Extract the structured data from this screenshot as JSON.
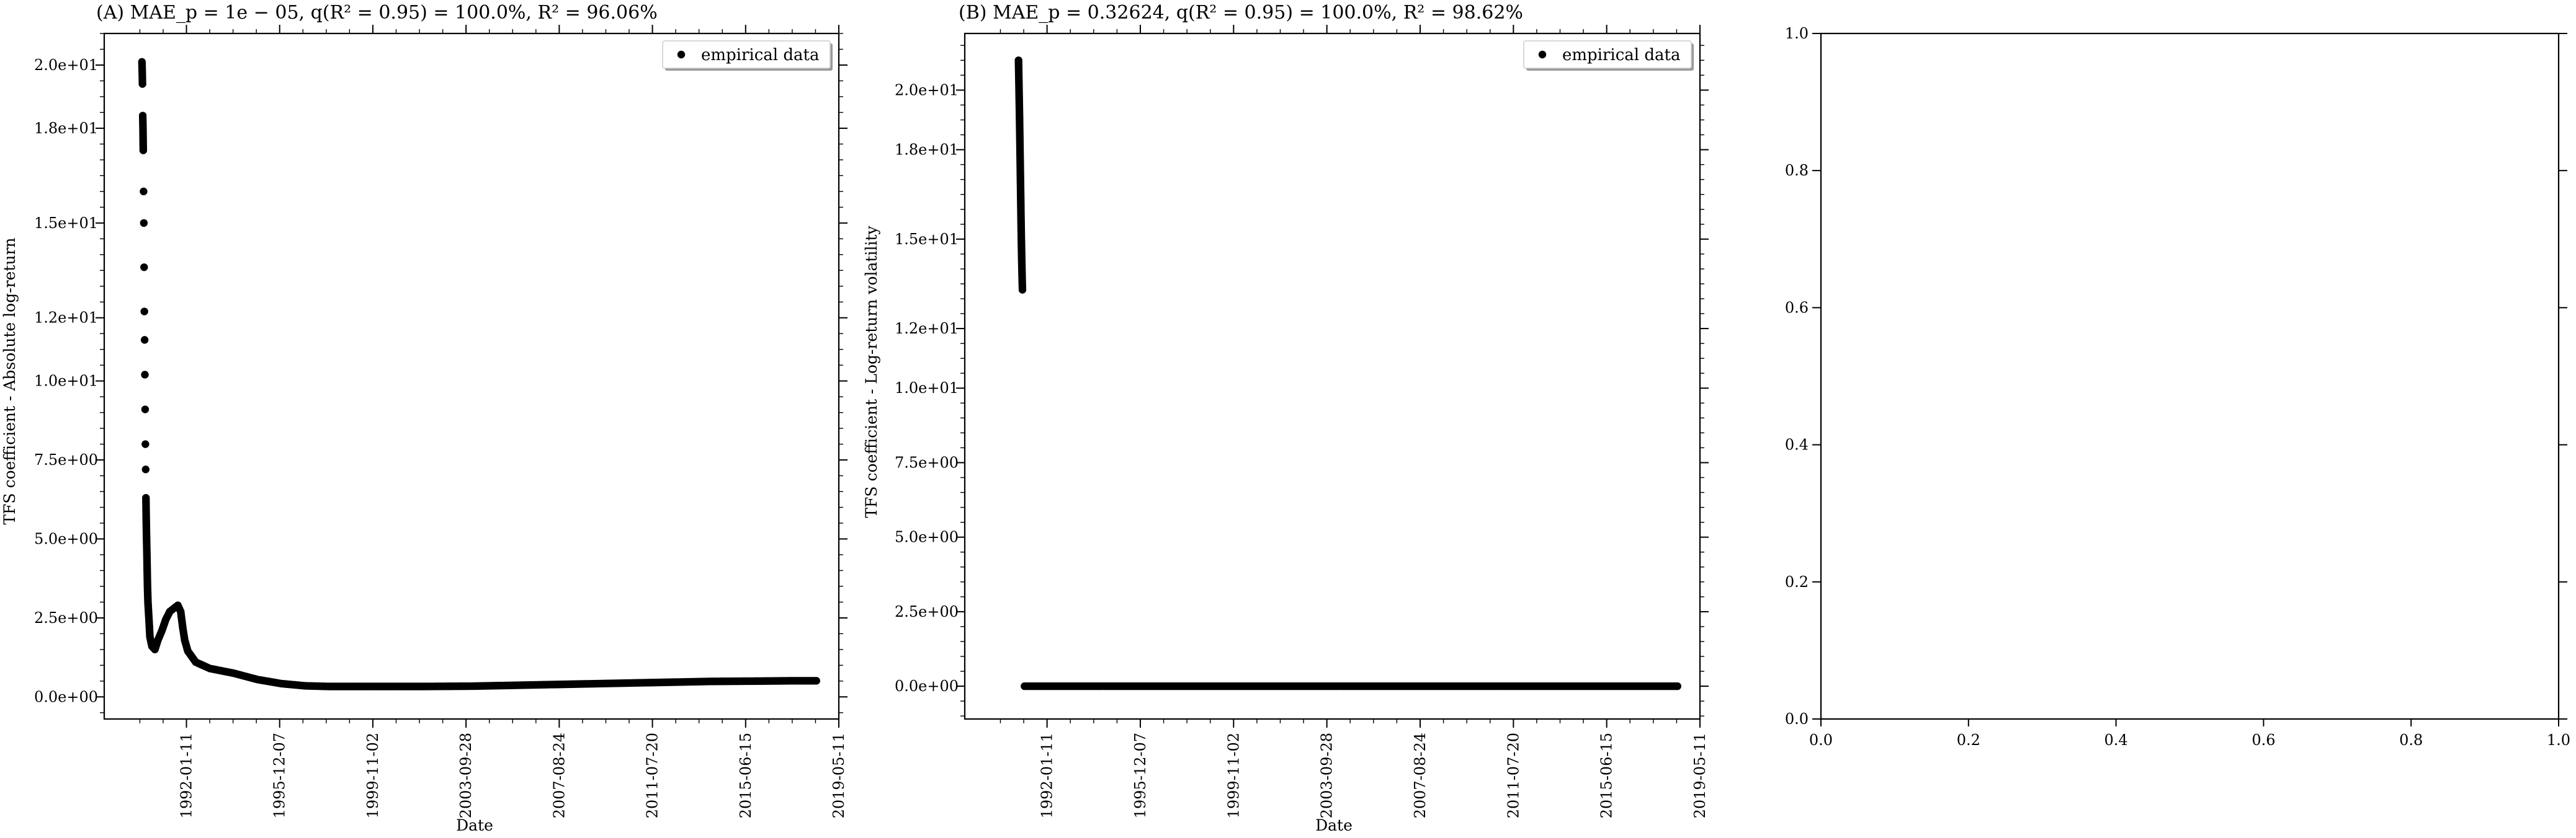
{
  "chart_data": [
    {
      "type": "scatter",
      "title": "(A) MAE_p = 1e − 05, q(R² = 0.95) = 100.0%, R² = 96.06%",
      "xlabel": "Date",
      "ylabel": "TFS coefficient - Absolute log-return",
      "x_ticks": [
        "1992-01-11",
        "1995-12-07",
        "1999-11-02",
        "2003-09-28",
        "2007-08-24",
        "2011-07-20",
        "2015-06-15",
        "2019-05-11"
      ],
      "y_ticks": [
        "0.0e+00",
        "2.5e+00",
        "5.0e+00",
        "7.5e+00",
        "1.0e+01",
        "1.2e+01",
        "1.5e+01",
        "1.8e+01",
        "2.0e+01"
      ],
      "xlim": [
        "1988-08-01",
        "2019-05-11"
      ],
      "ylim": [
        -0.7,
        21.0
      ],
      "legend": {
        "position": "top-right",
        "entries": [
          "empirical data"
        ]
      },
      "series": [
        {
          "name": "empirical data",
          "points": [
            [
              "1990-03-01",
              20.1
            ],
            [
              "1990-03-05",
              19.8
            ],
            [
              "1990-03-09",
              19.4
            ],
            [
              "1990-03-13",
              18.4
            ],
            [
              "1990-03-17",
              18.0
            ],
            [
              "1990-03-21",
              17.3
            ],
            [
              "1990-03-26",
              16.0
            ],
            [
              "1990-03-30",
              15.0
            ],
            [
              "1990-04-03",
              13.6
            ],
            [
              "1990-04-07",
              12.2
            ],
            [
              "1990-04-11",
              11.3
            ],
            [
              "1990-04-15",
              10.2
            ],
            [
              "1990-04-19",
              9.1
            ],
            [
              "1990-04-23",
              8.0
            ],
            [
              "1990-04-27",
              7.2
            ],
            [
              "1990-05-01",
              6.3
            ],
            [
              "1990-05-05",
              5.7
            ],
            [
              "1990-05-09",
              5.2
            ],
            [
              "1990-05-13",
              4.8
            ],
            [
              "1990-05-17",
              4.4
            ],
            [
              "1990-05-21",
              3.9
            ],
            [
              "1990-05-25",
              3.5
            ],
            [
              "1990-06-01",
              3.0
            ],
            [
              "1990-06-15",
              2.5
            ],
            [
              "1990-07-01",
              1.9
            ],
            [
              "1990-08-01",
              1.6
            ],
            [
              "1990-09-15",
              1.5
            ],
            [
              "1990-11-01",
              1.8
            ],
            [
              "1991-01-01",
              2.1
            ],
            [
              "1991-03-01",
              2.45
            ],
            [
              "1991-05-01",
              2.7
            ],
            [
              "1991-07-01",
              2.8
            ],
            [
              "1991-09-01",
              2.9
            ],
            [
              "1991-10-15",
              2.7
            ],
            [
              "1991-11-15",
              2.2
            ],
            [
              "1991-12-15",
              1.8
            ],
            [
              "1992-02-01",
              1.45
            ],
            [
              "1992-06-01",
              1.1
            ],
            [
              "1993-01-01",
              0.9
            ],
            [
              "1994-01-01",
              0.75
            ],
            [
              "1995-01-01",
              0.55
            ],
            [
              "1996-01-01",
              0.42
            ],
            [
              "1997-01-01",
              0.35
            ],
            [
              "1998-01-01",
              0.33
            ],
            [
              "2000-01-01",
              0.33
            ],
            [
              "2002-01-01",
              0.33
            ],
            [
              "2004-01-01",
              0.34
            ],
            [
              "2006-01-01",
              0.37
            ],
            [
              "2008-01-01",
              0.4
            ],
            [
              "2010-01-01",
              0.43
            ],
            [
              "2012-01-01",
              0.46
            ],
            [
              "2014-01-01",
              0.49
            ],
            [
              "2016-01-01",
              0.5
            ],
            [
              "2017-06-01",
              0.51
            ],
            [
              "2018-06-01",
              0.51
            ]
          ]
        }
      ]
    },
    {
      "type": "scatter",
      "title": "(B) MAE_p = 0.32624, q(R² = 0.95) = 100.0%, R² = 98.62%",
      "xlabel": "Date",
      "ylabel": "TFS coefficient - Log-return volatility",
      "x_ticks": [
        "1992-01-11",
        "1995-12-07",
        "1999-11-02",
        "2003-09-28",
        "2007-08-24",
        "2011-07-20",
        "2015-06-15",
        "2019-05-11"
      ],
      "y_ticks": [
        "0.0e+00",
        "2.5e+00",
        "5.0e+00",
        "7.5e+00",
        "1.0e+01",
        "1.2e+01",
        "1.5e+01",
        "1.8e+01",
        "2.0e+01"
      ],
      "xlim": [
        "1988-08-01",
        "2019-05-11"
      ],
      "ylim": [
        -1.1,
        21.9
      ],
      "legend": {
        "position": "top-right",
        "entries": [
          "empirical data"
        ]
      },
      "series": [
        {
          "name": "empirical data",
          "points": [
            [
              "1990-11-01",
              21.0
            ],
            [
              "1990-11-05",
              20.5
            ],
            [
              "1990-11-09",
              20.0
            ],
            [
              "1990-11-13",
              19.5
            ],
            [
              "1990-11-17",
              19.0
            ],
            [
              "1990-11-21",
              18.4
            ],
            [
              "1990-11-25",
              17.8
            ],
            [
              "1990-11-29",
              17.2
            ],
            [
              "1990-12-03",
              16.6
            ],
            [
              "1990-12-07",
              16.0
            ],
            [
              "1990-12-11",
              15.4
            ],
            [
              "1990-12-15",
              14.9
            ],
            [
              "1990-12-19",
              14.4
            ],
            [
              "1990-12-23",
              14.0
            ],
            [
              "1990-12-27",
              13.6
            ],
            [
              "1990-12-31",
              13.3
            ],
            [
              "1991-02-01",
              0.0
            ],
            [
              "1993-01-01",
              0.0
            ],
            [
              "1996-01-01",
              0.0
            ],
            [
              "2000-01-01",
              0.0
            ],
            [
              "2004-01-01",
              0.0
            ],
            [
              "2008-01-01",
              0.0
            ],
            [
              "2012-01-01",
              0.0
            ],
            [
              "2016-01-01",
              0.0
            ],
            [
              "2018-06-01",
              0.0
            ]
          ]
        }
      ]
    },
    {
      "type": "scatter",
      "title": "",
      "xlabel": "",
      "ylabel": "",
      "x_ticks": [
        "0.0",
        "0.2",
        "0.4",
        "0.6",
        "0.8",
        "1.0"
      ],
      "y_ticks": [
        "0.0",
        "0.2",
        "0.4",
        "0.6",
        "0.8",
        "1.0"
      ],
      "xlim": [
        0,
        1
      ],
      "ylim": [
        0,
        1
      ],
      "series": []
    }
  ]
}
